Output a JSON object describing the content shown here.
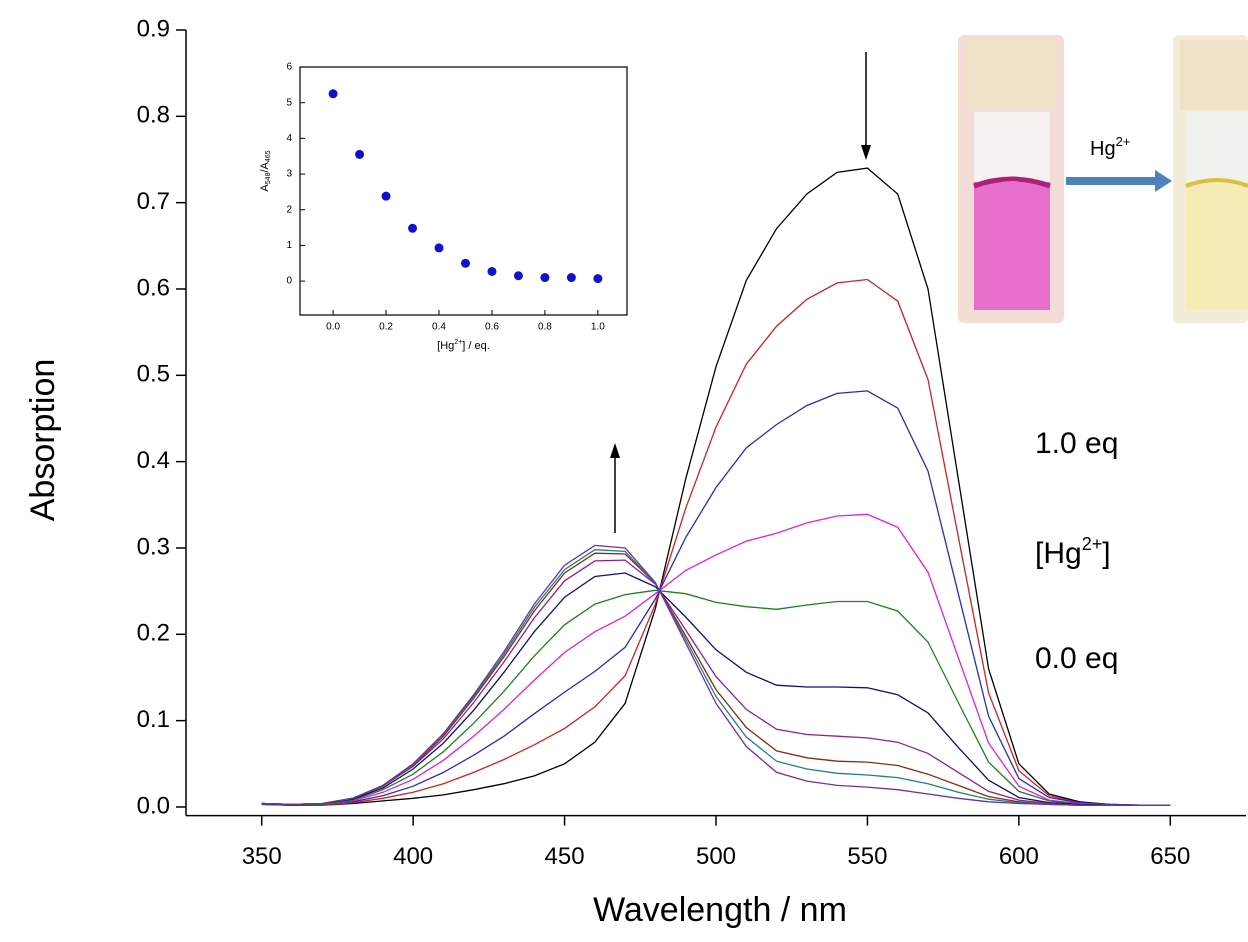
{
  "chart_data": [
    {
      "type": "line",
      "xlabel": "Wavelength / nm",
      "ylabel": "Absorption",
      "xlim": [
        325,
        675
      ],
      "ylim": [
        -0.01,
        0.9
      ],
      "xticks": [
        350,
        400,
        450,
        500,
        550,
        600,
        650
      ],
      "yticks": [
        {
          "value": 0,
          "label": "0.0"
        },
        0.1,
        0.2,
        0.3,
        0.4,
        0.5,
        0.6,
        0.7,
        0.8,
        0.9
      ],
      "x": [
        350,
        360,
        370,
        380,
        390,
        400,
        410,
        420,
        430,
        440,
        450,
        460,
        470,
        480,
        490,
        500,
        510,
        520,
        530,
        540,
        550,
        560,
        570,
        580,
        590,
        600,
        610,
        620,
        630,
        640,
        650
      ],
      "series": [
        {
          "color": "#000000",
          "values": [
            0.003,
            0.002,
            0.002,
            0.004,
            0.007,
            0.01,
            0.014,
            0.02,
            0.027,
            0.036,
            0.05,
            0.075,
            0.12,
            0.23,
            0.38,
            0.51,
            0.61,
            0.67,
            0.71,
            0.735,
            0.74,
            0.71,
            0.6,
            0.38,
            0.16,
            0.05,
            0.015,
            0.006,
            0.003,
            0.002,
            0.002
          ]
        },
        {
          "color": "#d42020",
          "values": [
            0.003,
            0.002,
            0.002,
            0.005,
            0.01,
            0.017,
            0.027,
            0.04,
            0.055,
            0.072,
            0.091,
            0.116,
            0.152,
            0.235,
            0.346,
            0.44,
            0.513,
            0.557,
            0.588,
            0.607,
            0.611,
            0.586,
            0.495,
            0.313,
            0.132,
            0.042,
            0.013,
            0.005,
            0.003,
            0.002,
            0.002
          ]
        },
        {
          "color": "#2a2ac0",
          "values": [
            0.003,
            0.002,
            0.003,
            0.006,
            0.013,
            0.024,
            0.04,
            0.06,
            0.082,
            0.108,
            0.133,
            0.157,
            0.185,
            0.241,
            0.312,
            0.37,
            0.416,
            0.443,
            0.465,
            0.479,
            0.482,
            0.462,
            0.389,
            0.247,
            0.105,
            0.033,
            0.011,
            0.005,
            0.003,
            0.002,
            0.002
          ]
        },
        {
          "color": "#e020e0",
          "values": [
            0.004,
            0.003,
            0.003,
            0.007,
            0.017,
            0.032,
            0.054,
            0.082,
            0.113,
            0.147,
            0.179,
            0.203,
            0.221,
            0.247,
            0.274,
            0.292,
            0.308,
            0.317,
            0.329,
            0.337,
            0.339,
            0.324,
            0.272,
            0.173,
            0.074,
            0.024,
            0.008,
            0.004,
            0.002,
            0.002,
            0.002
          ]
        },
        {
          "color": "#208020",
          "values": [
            0.004,
            0.003,
            0.003,
            0.008,
            0.02,
            0.038,
            0.064,
            0.097,
            0.134,
            0.175,
            0.211,
            0.235,
            0.246,
            0.251,
            0.247,
            0.237,
            0.232,
            0.229,
            0.234,
            0.238,
            0.238,
            0.227,
            0.191,
            0.121,
            0.052,
            0.018,
            0.007,
            0.003,
            0.002,
            0.002,
            0.002
          ]
        },
        {
          "color": "#101070",
          "values": [
            0.004,
            0.003,
            0.004,
            0.009,
            0.022,
            0.044,
            0.074,
            0.112,
            0.156,
            0.203,
            0.243,
            0.267,
            0.271,
            0.255,
            0.22,
            0.182,
            0.156,
            0.141,
            0.139,
            0.139,
            0.138,
            0.13,
            0.109,
            0.069,
            0.031,
            0.011,
            0.005,
            0.003,
            0.002,
            0.002,
            0.002
          ]
        },
        {
          "color": "#902090",
          "values": [
            0.004,
            0.003,
            0.004,
            0.01,
            0.024,
            0.047,
            0.079,
            0.121,
            0.168,
            0.219,
            0.262,
            0.285,
            0.286,
            0.258,
            0.205,
            0.151,
            0.113,
            0.09,
            0.084,
            0.082,
            0.08,
            0.075,
            0.062,
            0.04,
            0.018,
            0.008,
            0.004,
            0.002,
            0.002,
            0.002,
            0.002
          ]
        },
        {
          "color": "#803010",
          "values": [
            0.004,
            0.003,
            0.004,
            0.01,
            0.024,
            0.048,
            0.082,
            0.126,
            0.174,
            0.227,
            0.271,
            0.294,
            0.293,
            0.259,
            0.198,
            0.136,
            0.092,
            0.065,
            0.057,
            0.053,
            0.052,
            0.048,
            0.038,
            0.025,
            0.012,
            0.006,
            0.003,
            0.002,
            0.002,
            0.002,
            0.002
          ]
        },
        {
          "color": "#208080",
          "values": [
            0.004,
            0.003,
            0.004,
            0.01,
            0.025,
            0.049,
            0.084,
            0.128,
            0.177,
            0.231,
            0.275,
            0.298,
            0.296,
            0.259,
            0.194,
            0.128,
            0.081,
            0.053,
            0.044,
            0.039,
            0.037,
            0.034,
            0.027,
            0.017,
            0.009,
            0.005,
            0.003,
            0.002,
            0.002,
            0.002,
            0.002
          ]
        },
        {
          "color": "#7030a0",
          "values": [
            0.004,
            0.003,
            0.004,
            0.01,
            0.025,
            0.05,
            0.085,
            0.13,
            0.18,
            0.235,
            0.28,
            0.303,
            0.3,
            0.26,
            0.19,
            0.12,
            0.07,
            0.04,
            0.03,
            0.025,
            0.023,
            0.02,
            0.015,
            0.01,
            0.006,
            0.004,
            0.003,
            0.002,
            0.002,
            0.002,
            0.002
          ]
        }
      ],
      "annotations": [
        {
          "parts": [
            "1.0 eq"
          ]
        },
        {
          "parts": [
            "[Hg",
            "2+",
            "]"
          ]
        },
        {
          "parts": [
            "0.0 eq"
          ]
        }
      ],
      "photo_label": [
        "Hg",
        "2+"
      ]
    },
    {
      "type": "scatter",
      "color": "#1010d0",
      "xlabel": [
        "[Hg",
        "2+",
        "] / eq."
      ],
      "ylabel": [
        "A",
        "548",
        "/A",
        "465"
      ],
      "xlim": [
        -0.125,
        1.11
      ],
      "ylim": [
        -0.95,
        6
      ],
      "xticks": [
        {
          "value": 0,
          "label": "0.0"
        },
        0.2,
        0.4,
        0.6,
        0.8,
        {
          "value": 1,
          "label": "1.0"
        }
      ],
      "yticks": [
        0,
        1,
        2,
        3,
        4,
        5,
        6
      ],
      "x": [
        0,
        0.1,
        0.2,
        0.3,
        0.4,
        0.5,
        0.6,
        0.7,
        0.8,
        0.9,
        1.0
      ],
      "values": [
        5.25,
        3.55,
        2.38,
        1.48,
        0.93,
        0.5,
        0.27,
        0.15,
        0.1,
        0.1,
        0.07
      ]
    }
  ]
}
